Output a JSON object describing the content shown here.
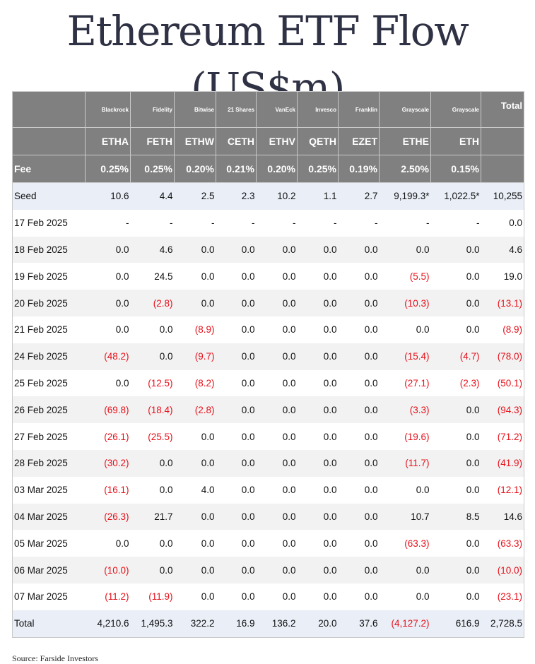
{
  "title": "Ethereum ETF Flow (US$m)",
  "source": "Source: Farside Investors",
  "issuers": [
    "Blackrock",
    "Fidelity",
    "Bitwise",
    "21 Shares",
    "VanEck",
    "Invesco",
    "Franklin",
    "Grayscale",
    "Grayscale"
  ],
  "total_header": "Total",
  "tickers": [
    "ETHA",
    "FETH",
    "ETHW",
    "CETH",
    "ETHV",
    "QETH",
    "EZET",
    "ETHE",
    "ETH"
  ],
  "fee_label": "Fee",
  "fees": [
    "0.25%",
    "0.25%",
    "0.20%",
    "0.21%",
    "0.20%",
    "0.25%",
    "0.19%",
    "2.50%",
    "0.15%"
  ],
  "rows": [
    {
      "label": "Seed",
      "cells": [
        "10.6",
        "4.4",
        "2.5",
        "2.3",
        "10.2",
        "1.1",
        "2.7",
        "9,199.3*",
        "1,022.5*",
        "10,255"
      ]
    },
    {
      "label": "17 Feb 2025",
      "cells": [
        "-",
        "-",
        "-",
        "-",
        "-",
        "-",
        "-",
        "-",
        "-",
        "0.0"
      ]
    },
    {
      "label": "18 Feb 2025",
      "cells": [
        "0.0",
        "4.6",
        "0.0",
        "0.0",
        "0.0",
        "0.0",
        "0.0",
        "0.0",
        "0.0",
        "4.6"
      ]
    },
    {
      "label": "19 Feb 2025",
      "cells": [
        "0.0",
        "24.5",
        "0.0",
        "0.0",
        "0.0",
        "0.0",
        "0.0",
        "(5.5)",
        "0.0",
        "19.0"
      ]
    },
    {
      "label": "20 Feb 2025",
      "cells": [
        "0.0",
        "(2.8)",
        "0.0",
        "0.0",
        "0.0",
        "0.0",
        "0.0",
        "(10.3)",
        "0.0",
        "(13.1)"
      ]
    },
    {
      "label": "21 Feb 2025",
      "cells": [
        "0.0",
        "0.0",
        "(8.9)",
        "0.0",
        "0.0",
        "0.0",
        "0.0",
        "0.0",
        "0.0",
        "(8.9)"
      ]
    },
    {
      "label": "24 Feb 2025",
      "cells": [
        "(48.2)",
        "0.0",
        "(9.7)",
        "0.0",
        "0.0",
        "0.0",
        "0.0",
        "(15.4)",
        "(4.7)",
        "(78.0)"
      ]
    },
    {
      "label": "25 Feb 2025",
      "cells": [
        "0.0",
        "(12.5)",
        "(8.2)",
        "0.0",
        "0.0",
        "0.0",
        "0.0",
        "(27.1)",
        "(2.3)",
        "(50.1)"
      ]
    },
    {
      "label": "26 Feb 2025",
      "cells": [
        "(69.8)",
        "(18.4)",
        "(2.8)",
        "0.0",
        "0.0",
        "0.0",
        "0.0",
        "(3.3)",
        "0.0",
        "(94.3)"
      ]
    },
    {
      "label": "27 Feb 2025",
      "cells": [
        "(26.1)",
        "(25.5)",
        "0.0",
        "0.0",
        "0.0",
        "0.0",
        "0.0",
        "(19.6)",
        "0.0",
        "(71.2)"
      ]
    },
    {
      "label": "28 Feb 2025",
      "cells": [
        "(30.2)",
        "0.0",
        "0.0",
        "0.0",
        "0.0",
        "0.0",
        "0.0",
        "(11.7)",
        "0.0",
        "(41.9)"
      ]
    },
    {
      "label": "03 Mar 2025",
      "cells": [
        "(16.1)",
        "0.0",
        "4.0",
        "0.0",
        "0.0",
        "0.0",
        "0.0",
        "0.0",
        "0.0",
        "(12.1)"
      ]
    },
    {
      "label": "04 Mar 2025",
      "cells": [
        "(26.3)",
        "21.7",
        "0.0",
        "0.0",
        "0.0",
        "0.0",
        "0.0",
        "10.7",
        "8.5",
        "14.6"
      ]
    },
    {
      "label": "05 Mar 2025",
      "cells": [
        "0.0",
        "0.0",
        "0.0",
        "0.0",
        "0.0",
        "0.0",
        "0.0",
        "(63.3)",
        "0.0",
        "(63.3)"
      ]
    },
    {
      "label": "06 Mar 2025",
      "cells": [
        "(10.0)",
        "0.0",
        "0.0",
        "0.0",
        "0.0",
        "0.0",
        "0.0",
        "0.0",
        "0.0",
        "(10.0)"
      ]
    },
    {
      "label": "07 Mar 2025",
      "cells": [
        "(11.2)",
        "(11.9)",
        "0.0",
        "0.0",
        "0.0",
        "0.0",
        "0.0",
        "0.0",
        "0.0",
        "(23.1)"
      ]
    },
    {
      "label": "Total",
      "cells": [
        "4,210.6",
        "1,495.3",
        "322.2",
        "16.9",
        "136.2",
        "20.0",
        "37.6",
        "(4,127.2)",
        "616.9",
        "2,728.5"
      ]
    }
  ],
  "colors": {
    "header_bg": "#808080",
    "negative": "#e8101a",
    "highlight_row": "#e9eef7",
    "alt_row": "#f2f2f2"
  }
}
